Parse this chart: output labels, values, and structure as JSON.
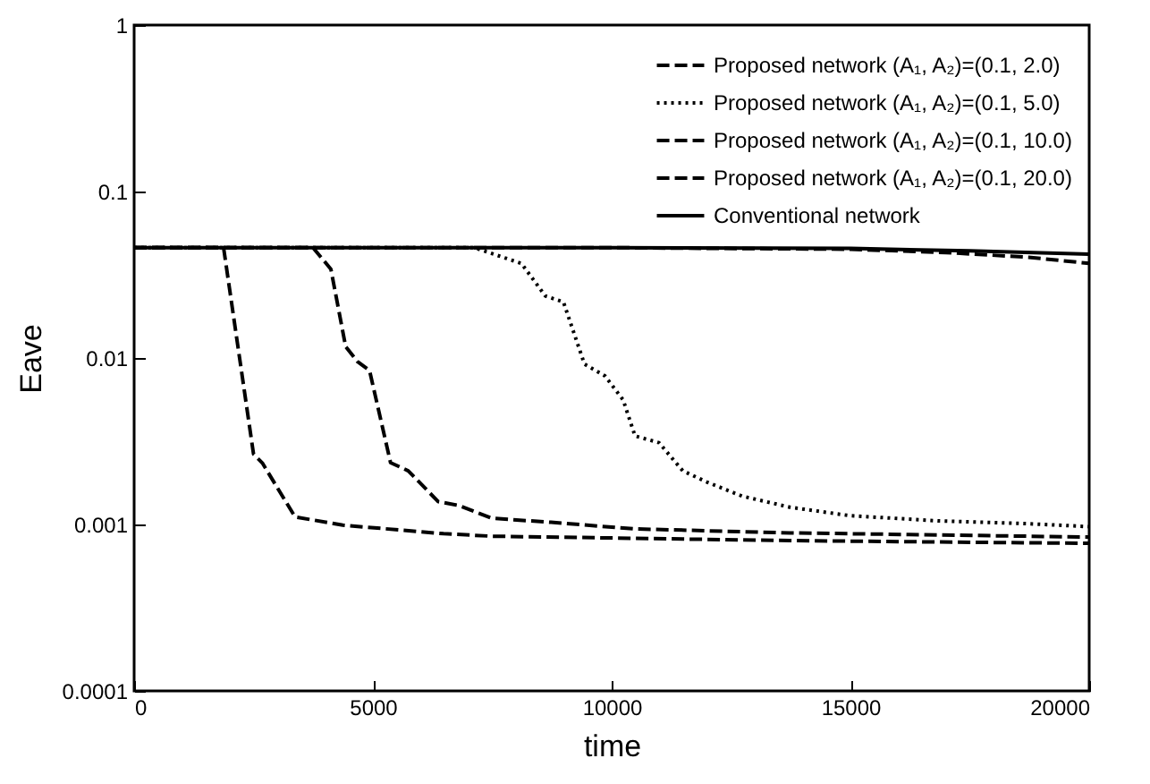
{
  "chart_data": {
    "type": "line",
    "xlabel": "time",
    "ylabel": "Eave",
    "log": "y",
    "xlim": [
      0,
      20000
    ],
    "xticks": [
      0,
      5000,
      10000,
      15000,
      20000
    ],
    "ylim": [
      0.0001,
      1
    ],
    "yticks": [
      0.0001,
      0.001,
      0.01,
      0.1,
      1
    ],
    "legend": "top right",
    "grid": false,
    "series": [
      {
        "name": "Proposed network (A₁, A₂)=(0.1, 2.0)",
        "color": "#000000",
        "line_style": "dashed",
        "x": [
          0,
          5000,
          10000,
          15000,
          17000,
          18730,
          20000
        ],
        "values": [
          0.046,
          0.046,
          0.046,
          0.045,
          0.043,
          0.0403,
          0.037
        ]
      },
      {
        "name": "Proposed network (A₁, A₂)=(0.1, 5.0)",
        "color": "#000000",
        "line_style": "dotted",
        "x": [
          0,
          7120,
          8110,
          8610,
          8990,
          9430,
          9860,
          10240,
          10490,
          10990,
          11490,
          11990,
          12730,
          13730,
          14980,
          16850,
          18730,
          20000
        ],
        "values": [
          0.046,
          0.046,
          0.037,
          0.0236,
          0.0217,
          0.0092,
          0.0078,
          0.0056,
          0.0034,
          0.0031,
          0.0021,
          0.0018,
          0.00148,
          0.00127,
          0.00113,
          0.00105,
          0.00101,
          0.00097
        ]
      },
      {
        "name": "Proposed network (A₁, A₂)=(0.1, 10.0)",
        "color": "#000000",
        "line_style": "dashed",
        "x": [
          0,
          3745,
          4120,
          4430,
          4680,
          4930,
          5370,
          5740,
          6370,
          6800,
          7490,
          8730,
          10490,
          13730,
          20000
        ],
        "values": [
          0.046,
          0.046,
          0.0342,
          0.0117,
          0.0095,
          0.0084,
          0.00235,
          0.0021,
          0.00137,
          0.0013,
          0.00109,
          0.00103,
          0.00094,
          0.00089,
          0.00084
        ]
      },
      {
        "name": "Proposed network (A₁, A₂)=(0.1, 20.0)",
        "color": "#000000",
        "line_style": "dashed",
        "x": [
          0,
          1873,
          2500,
          2685,
          3370,
          4370,
          6480,
          7490,
          13730,
          20000
        ],
        "values": [
          0.046,
          0.046,
          0.00265,
          0.00234,
          0.00111,
          0.00099,
          0.00088,
          0.00085,
          0.0008,
          0.00077
        ]
      },
      {
        "name": "Conventional network",
        "color": "#000000",
        "line_style": "solid",
        "x": [
          0,
          5000,
          10000,
          15000,
          17500,
          20000
        ],
        "values": [
          0.046,
          0.046,
          0.046,
          0.0455,
          0.044,
          0.042
        ]
      }
    ]
  }
}
